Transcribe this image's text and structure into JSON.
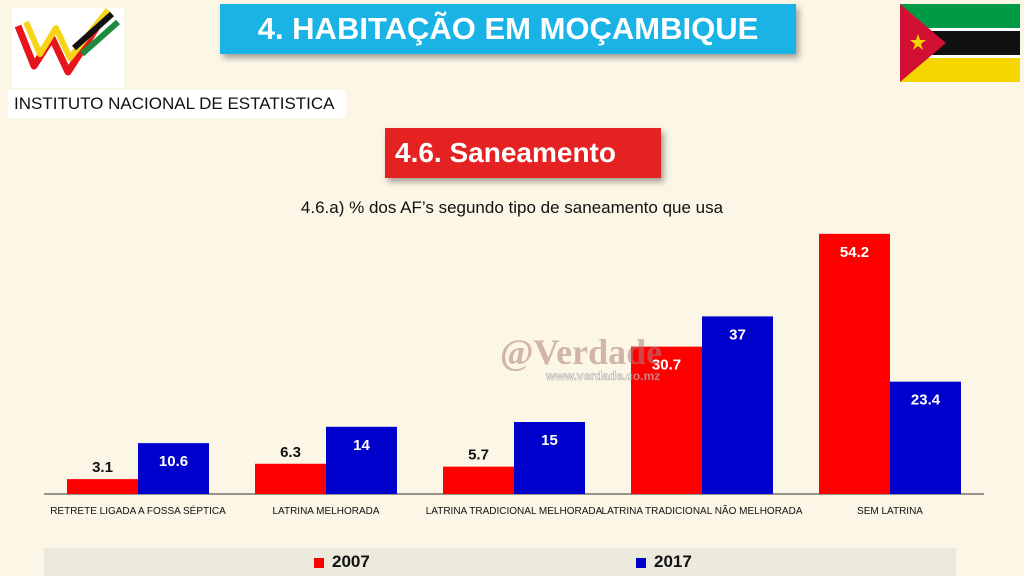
{
  "header": {
    "institute": "INSTITUTO NACIONAL DE ESTATISTICA",
    "title": "4. HABITAÇÃO EM MOÇAMBIQUE",
    "section": "4.6. Saneamento"
  },
  "watermark": {
    "brand": "@Verdade",
    "url": "www.verdade.co.mz"
  },
  "colors": {
    "title_bg": "#1ab3e6",
    "section_bg": "#e52222",
    "series_2007": "#ff0000",
    "series_2017": "#0000cc"
  },
  "chart_data": {
    "type": "bar",
    "title": "4.6.a) % dos AF’s segundo tipo de saneamento que usa",
    "categories": [
      "RETRETE LIGADA A FOSSA SÉPTICA",
      "LATRINA MELHORADA",
      "LATRINA TRADICIONAL MELHORADA",
      "LATRINA TRADICIONAL NÃO MELHORADA",
      "SEM LATRINA"
    ],
    "series": [
      {
        "name": "2007",
        "values": [
          3.1,
          6.3,
          5.7,
          30.7,
          54.2
        ]
      },
      {
        "name": "2017",
        "values": [
          10.6,
          14,
          15,
          37,
          23.4
        ]
      }
    ],
    "value_labels": [
      [
        "3.1",
        "6.3",
        "5.7",
        "30.7",
        "54.2"
      ],
      [
        "10.6",
        "14",
        "15",
        "37",
        "23.4"
      ]
    ],
    "ylim": [
      0,
      55
    ],
    "grid": false,
    "legend_position": "bottom"
  }
}
